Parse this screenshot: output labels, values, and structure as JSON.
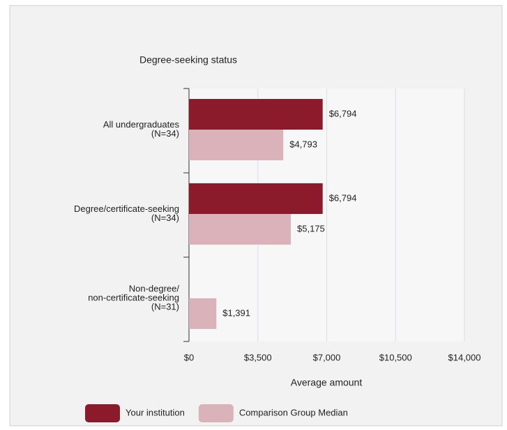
{
  "chart_data": {
    "type": "barh",
    "title": "Degree-seeking status",
    "x_label": "Average amount",
    "categories": [
      [
        "All undergraduates",
        "(N=34)"
      ],
      [
        "Degree/certificate-seeking",
        "(N=34)"
      ],
      [
        "Non-degree/",
        "non-certificate-seeking",
        "(N=31)"
      ]
    ],
    "series": [
      {
        "name": "Your institution",
        "color": "#8b1a2b",
        "values": [
          6794,
          6794,
          null
        ],
        "value_labels": [
          "$6,794",
          "$6,794",
          null
        ]
      },
      {
        "name": "Comparison Group Median",
        "color": "#d9b3b9",
        "values": [
          4793,
          5175,
          1391
        ],
        "value_labels": [
          "$4,793",
          "$5,175",
          "$1,391"
        ]
      }
    ],
    "xlim": [
      0,
      14000
    ],
    "xticks": [
      {
        "value": 0,
        "label": "$0"
      },
      {
        "value": 3500,
        "label": "$3,500"
      },
      {
        "value": 7000,
        "label": "$7,000"
      },
      {
        "value": 10500,
        "label": "$10,500"
      },
      {
        "value": 14000,
        "label": "$14,000"
      }
    ],
    "grid": true,
    "legend": "bottom"
  }
}
